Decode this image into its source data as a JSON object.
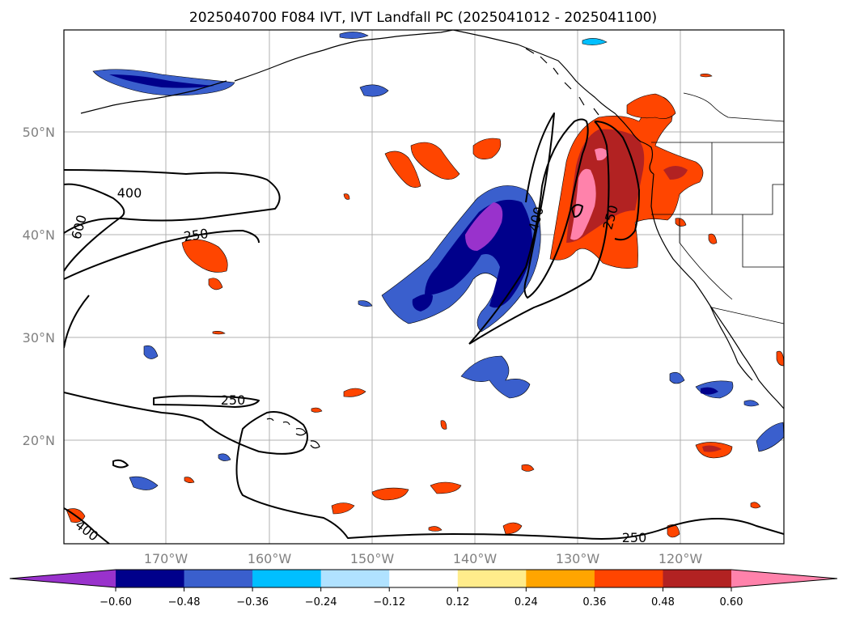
{
  "title": "2025040700 F084 IVT, IVT Landfall PC (2025041012 - 2025041100)",
  "lat_labels": [
    "50°N",
    "40°N",
    "30°N",
    "20°N"
  ],
  "lon_labels": [
    "170°W",
    "160°W",
    "150°W",
    "140°W",
    "130°W",
    "120°W"
  ],
  "contour_labels": [
    "400",
    "600",
    "250",
    "250",
    "400",
    "250",
    "250",
    "400"
  ],
  "colorbar": {
    "tick_labels": [
      "−0.60",
      "−0.48",
      "−0.36",
      "−0.24",
      "−0.12",
      "0.12",
      "0.24",
      "0.36",
      "0.48",
      "0.60"
    ],
    "colors": [
      "#9932cc",
      "#00008b",
      "#3a5fcd",
      "#00bfff",
      "#b0e2ff",
      "#ffffff",
      "#ffec8b",
      "#ffa500",
      "#ff4500",
      "#b22222",
      "#ff82ab"
    ]
  },
  "extent": {
    "lon_min": -180,
    "lon_max": -110,
    "lat_min": 10,
    "lat_max": 60
  }
}
